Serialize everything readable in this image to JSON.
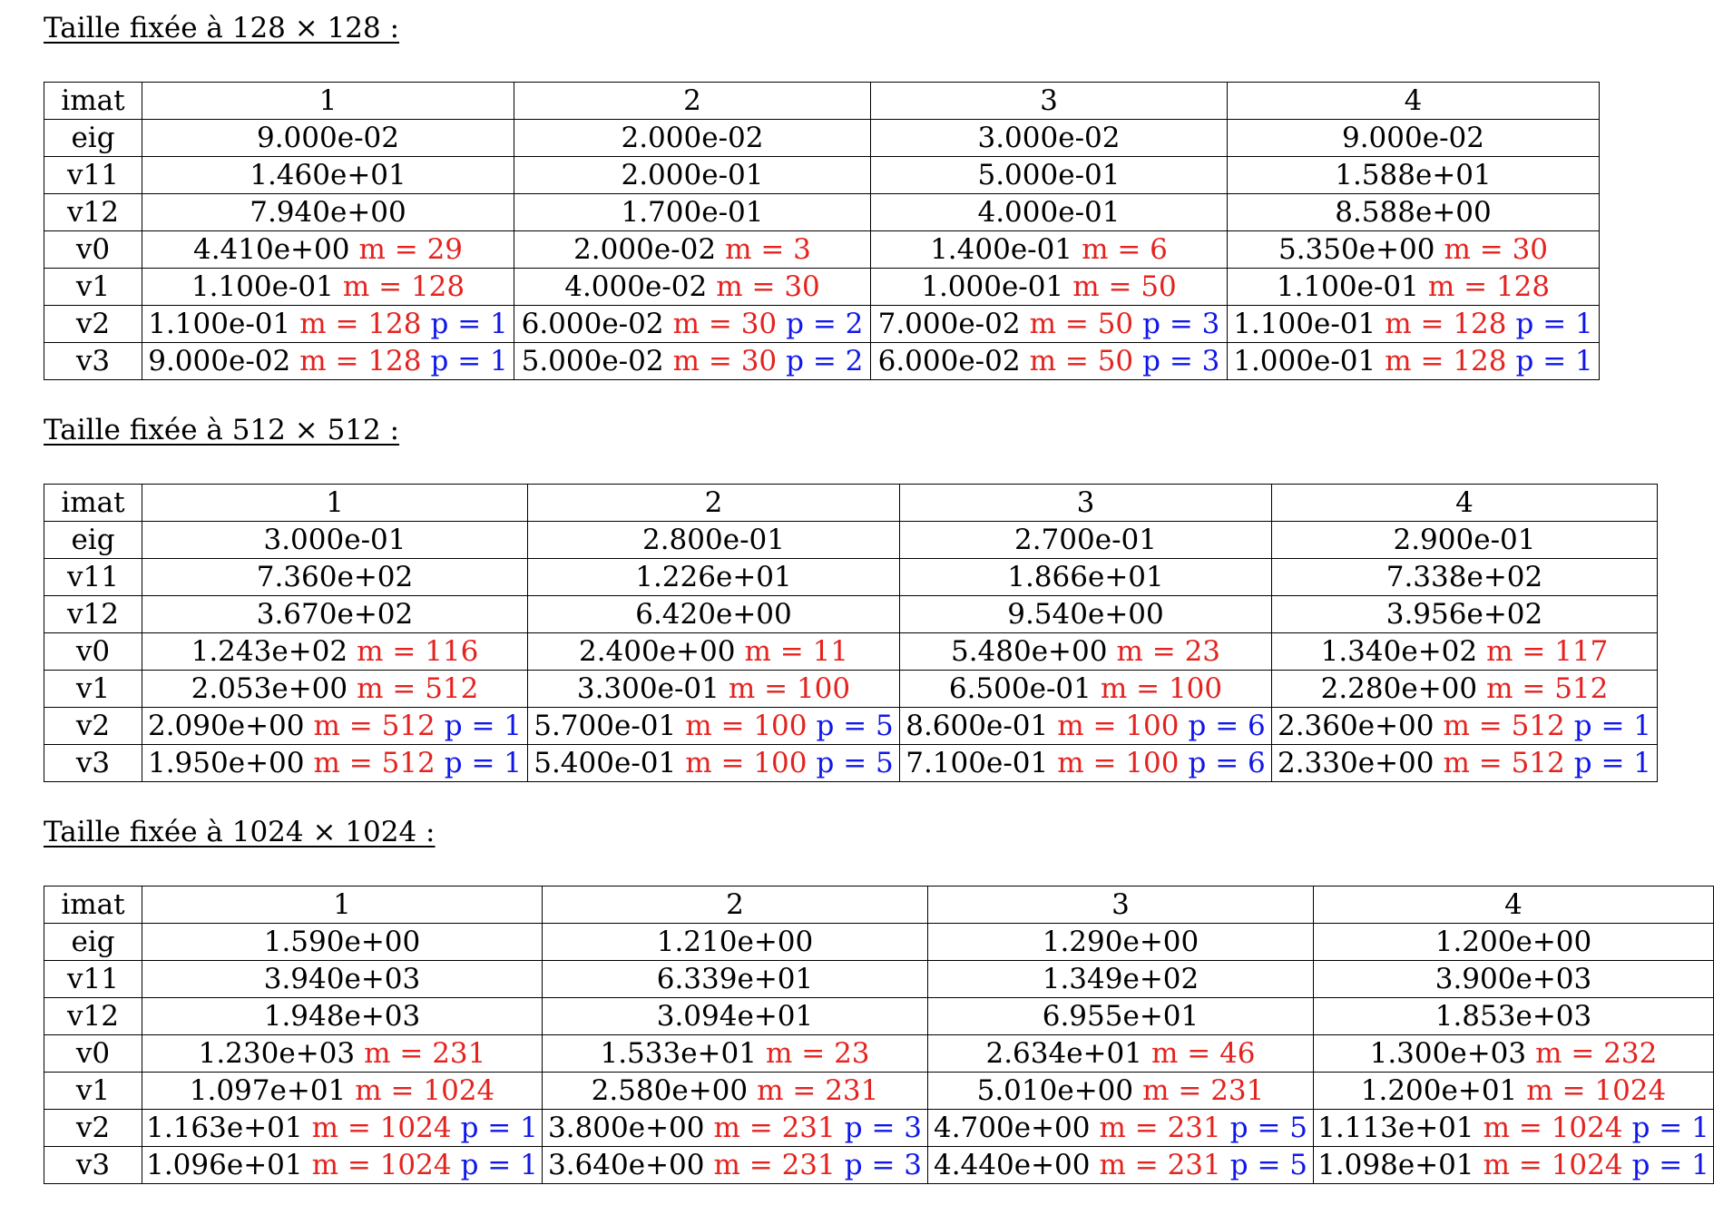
{
  "sections": [
    {
      "caption": "Taille fixée à 128 × 128 :",
      "widths": [
        108,
        410,
        393,
        393,
        410
      ],
      "header": {
        "label": "imat",
        "cols": [
          "1",
          "2",
          "3",
          "4"
        ]
      },
      "rows": [
        {
          "label": "eig",
          "cells": [
            {
              "v": "9.000e-02"
            },
            {
              "v": "2.000e-02"
            },
            {
              "v": "3.000e-02"
            },
            {
              "v": "9.000e-02"
            }
          ]
        },
        {
          "label": "v11",
          "cells": [
            {
              "v": "1.460e+01"
            },
            {
              "v": "2.000e-01"
            },
            {
              "v": "5.000e-01"
            },
            {
              "v": "1.588e+01"
            }
          ]
        },
        {
          "label": "v12",
          "cells": [
            {
              "v": "7.940e+00"
            },
            {
              "v": "1.700e-01"
            },
            {
              "v": "4.000e-01"
            },
            {
              "v": "8.588e+00"
            }
          ]
        },
        {
          "label": "v0",
          "cells": [
            {
              "v": "4.410e+00",
              "m": "29"
            },
            {
              "v": "2.000e-02",
              "m": "3"
            },
            {
              "v": "1.400e-01",
              "m": "6"
            },
            {
              "v": "5.350e+00",
              "m": "30"
            }
          ]
        },
        {
          "label": "v1",
          "cells": [
            {
              "v": "1.100e-01",
              "m": "128"
            },
            {
              "v": "4.000e-02",
              "m": "30"
            },
            {
              "v": "1.000e-01",
              "m": "50"
            },
            {
              "v": "1.100e-01",
              "m": "128"
            }
          ]
        },
        {
          "label": "v2",
          "cells": [
            {
              "v": "1.100e-01",
              "m": "128",
              "p": "1"
            },
            {
              "v": "6.000e-02",
              "m": "30",
              "p": "2"
            },
            {
              "v": "7.000e-02",
              "m": "50",
              "p": "3"
            },
            {
              "v": "1.100e-01",
              "m": "128",
              "p": "1"
            }
          ]
        },
        {
          "label": "v3",
          "cells": [
            {
              "v": "9.000e-02",
              "m": "128",
              "p": "1"
            },
            {
              "v": "5.000e-02",
              "m": "30",
              "p": "2"
            },
            {
              "v": "6.000e-02",
              "m": "50",
              "p": "3"
            },
            {
              "v": "1.000e-01",
              "m": "128",
              "p": "1"
            }
          ]
        }
      ]
    },
    {
      "caption": "Taille fixée à 512 × 512 :",
      "widths": [
        108,
        425,
        410,
        410,
        425
      ],
      "header": {
        "label": "imat",
        "cols": [
          "1",
          "2",
          "3",
          "4"
        ]
      },
      "rows": [
        {
          "label": "eig",
          "cells": [
            {
              "v": "3.000e-01"
            },
            {
              "v": "2.800e-01"
            },
            {
              "v": "2.700e-01"
            },
            {
              "v": "2.900e-01"
            }
          ]
        },
        {
          "label": "v11",
          "cells": [
            {
              "v": "7.360e+02"
            },
            {
              "v": "1.226e+01"
            },
            {
              "v": "1.866e+01"
            },
            {
              "v": "7.338e+02"
            }
          ]
        },
        {
          "label": "v12",
          "cells": [
            {
              "v": "3.670e+02"
            },
            {
              "v": "6.420e+00"
            },
            {
              "v": "9.540e+00"
            },
            {
              "v": "3.956e+02"
            }
          ]
        },
        {
          "label": "v0",
          "cells": [
            {
              "v": "1.243e+02",
              "m": "116"
            },
            {
              "v": "2.400e+00",
              "m": "11"
            },
            {
              "v": "5.480e+00",
              "m": "23"
            },
            {
              "v": "1.340e+02",
              "m": "117"
            }
          ]
        },
        {
          "label": "v1",
          "cells": [
            {
              "v": "2.053e+00",
              "m": "512"
            },
            {
              "v": "3.300e-01",
              "m": "100"
            },
            {
              "v": "6.500e-01",
              "m": "100"
            },
            {
              "v": "2.280e+00",
              "m": "512"
            }
          ]
        },
        {
          "label": "v2",
          "cells": [
            {
              "v": "2.090e+00",
              "m": "512",
              "p": "1"
            },
            {
              "v": "5.700e-01",
              "m": "100",
              "p": "5"
            },
            {
              "v": "8.600e-01",
              "m": "100",
              "p": "6"
            },
            {
              "v": "2.360e+00",
              "m": "512",
              "p": "1"
            }
          ]
        },
        {
          "label": "v3",
          "cells": [
            {
              "v": "1.950e+00",
              "m": "512",
              "p": "1"
            },
            {
              "v": "5.400e-01",
              "m": "100",
              "p": "5"
            },
            {
              "v": "7.100e-01",
              "m": "100",
              "p": "6"
            },
            {
              "v": "2.330e+00",
              "m": "512",
              "p": "1"
            }
          ]
        }
      ]
    },
    {
      "caption": "Taille fixée à 1024 × 1024 :",
      "widths": [
        108,
        441,
        425,
        425,
        441
      ],
      "header": {
        "label": "imat",
        "cols": [
          "1",
          "2",
          "3",
          "4"
        ]
      },
      "rows": [
        {
          "label": "eig",
          "cells": [
            {
              "v": "1.590e+00"
            },
            {
              "v": "1.210e+00"
            },
            {
              "v": "1.290e+00"
            },
            {
              "v": "1.200e+00"
            }
          ]
        },
        {
          "label": "v11",
          "cells": [
            {
              "v": "3.940e+03"
            },
            {
              "v": "6.339e+01"
            },
            {
              "v": "1.349e+02"
            },
            {
              "v": "3.900e+03"
            }
          ]
        },
        {
          "label": "v12",
          "cells": [
            {
              "v": "1.948e+03"
            },
            {
              "v": "3.094e+01"
            },
            {
              "v": "6.955e+01"
            },
            {
              "v": "1.853e+03"
            }
          ]
        },
        {
          "label": "v0",
          "cells": [
            {
              "v": "1.230e+03",
              "m": "231"
            },
            {
              "v": "1.533e+01",
              "m": "23"
            },
            {
              "v": "2.634e+01",
              "m": "46"
            },
            {
              "v": "1.300e+03",
              "m": "232"
            }
          ]
        },
        {
          "label": "v1",
          "cells": [
            {
              "v": "1.097e+01",
              "m": "1024"
            },
            {
              "v": "2.580e+00",
              "m": "231"
            },
            {
              "v": "5.010e+00",
              "m": "231"
            },
            {
              "v": "1.200e+01",
              "m": "1024"
            }
          ]
        },
        {
          "label": "v2",
          "cells": [
            {
              "v": "1.163e+01",
              "m": "1024",
              "p": "1"
            },
            {
              "v": "3.800e+00",
              "m": "231",
              "p": "3"
            },
            {
              "v": "4.700e+00",
              "m": "231",
              "p": "5"
            },
            {
              "v": "1.113e+01",
              "m": "1024",
              "p": "1"
            }
          ]
        },
        {
          "label": "v3",
          "cells": [
            {
              "v": "1.096e+01",
              "m": "1024",
              "p": "1"
            },
            {
              "v": "3.640e+00",
              "m": "231",
              "p": "3"
            },
            {
              "v": "4.440e+00",
              "m": "231",
              "p": "5"
            },
            {
              "v": "1.098e+01",
              "m": "1024",
              "p": "1"
            }
          ]
        }
      ]
    }
  ],
  "colors": {
    "m": "#e4231f",
    "p": "#1017e8"
  }
}
